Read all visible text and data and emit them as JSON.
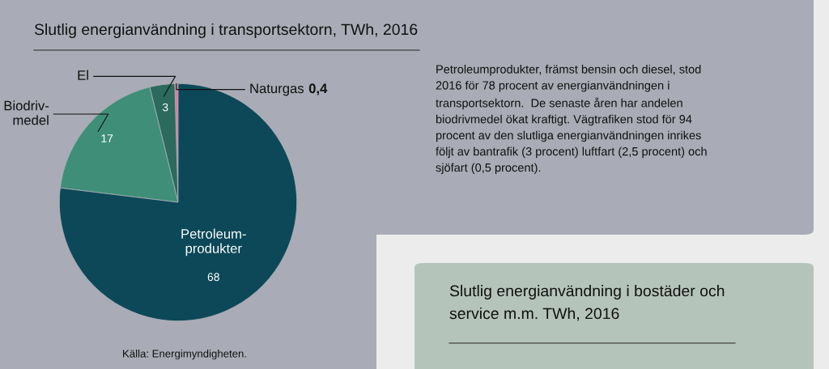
{
  "chart_data": {
    "type": "pie",
    "title": "Slutlig energianvändning i transportsektorn, TWh, 2016",
    "categories": [
      "Naturgas",
      "El",
      "Biodriv-\nmedel",
      "Petroleum-\nprodukter"
    ],
    "values": [
      0.4,
      3,
      17,
      68
    ],
    "colors": [
      "#e8769e",
      "#2b6a5d",
      "#3f8f78",
      "#0c4858"
    ],
    "value_labels": [
      "0,4",
      "3",
      "17",
      "68"
    ],
    "annotations": [
      "Petroleumprodukter, främst bensin och diesel, stod\n2016 för 78 procent av energianvändningen i\ntransportsektorn.  De senaste åren har andelen\nbiodrivmedel ökat kraftigt. Vägtrafiken stod för 94\nprocent av den slutliga energianvändningen inrikes\nföljt av bantrafik (3 procent) luftfart (2,5 procent) och\nsjöfart (0,5 procent).",
      "Källa: Energimyndigheten.",
      "Slutlig energianvändning i bostäder och\nservice m.m. TWh, 2016"
    ]
  }
}
